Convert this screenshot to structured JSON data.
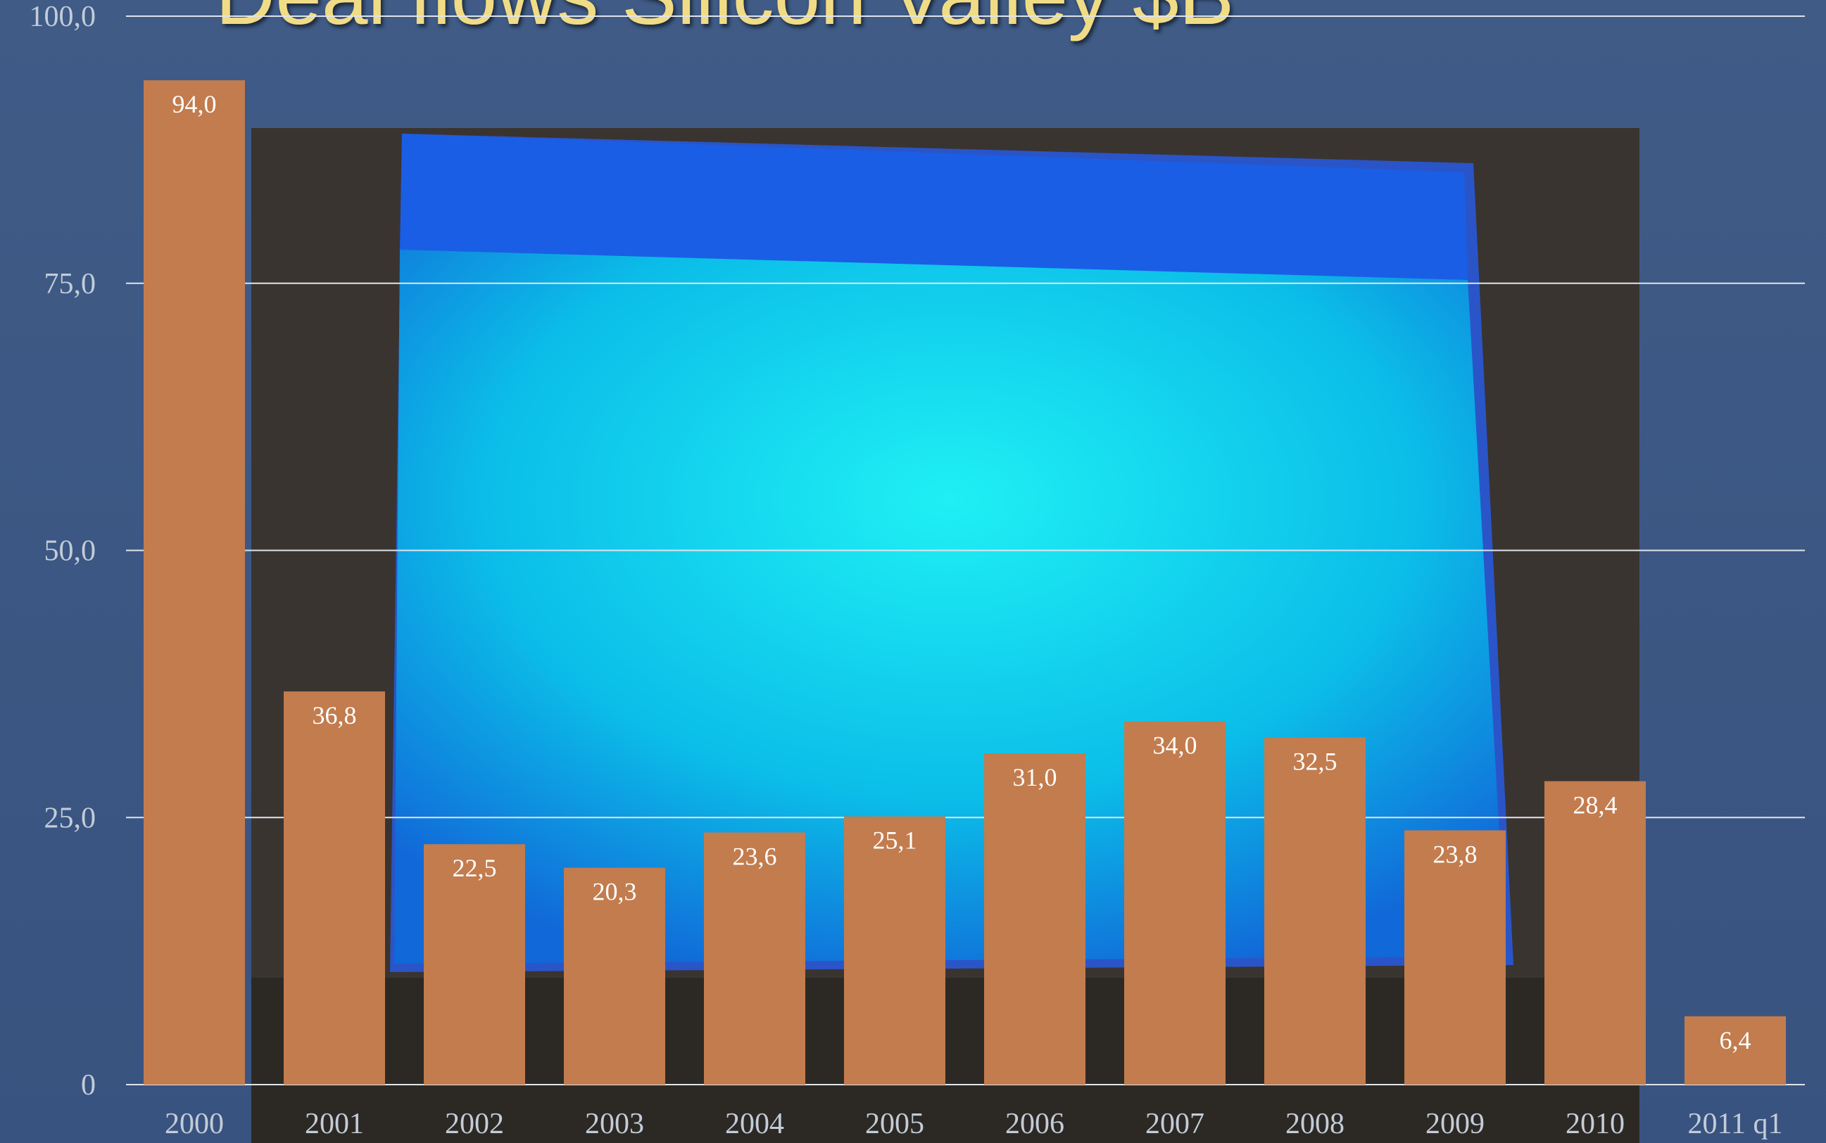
{
  "chart_data": {
    "type": "bar",
    "title": "Deal flows Silicon Valley $B",
    "categories": [
      "2000",
      "2001",
      "2002",
      "2003",
      "2004",
      "2005",
      "2006",
      "2007",
      "2008",
      "2009",
      "2010",
      "2011 q1"
    ],
    "values": [
      94.0,
      36.8,
      22.5,
      20.3,
      23.6,
      25.1,
      31.0,
      34.0,
      32.5,
      23.8,
      28.4,
      6.4
    ],
    "value_labels": [
      "94,0",
      "36,8",
      "22,5",
      "20,3",
      "23,6",
      "25,1",
      "31,0",
      "34,0",
      "32,5",
      "23,8",
      "28,4",
      "6,4"
    ],
    "color": "#c27c4e",
    "ylim": [
      0,
      100
    ],
    "yticks": [
      0,
      {
        "value": 25,
        "label": "25,0"
      },
      {
        "value": 50,
        "label": "50,0"
      },
      {
        "value": 75,
        "label": "75,0"
      },
      {
        "value": 100,
        "label": "100,0"
      }
    ],
    "grid": true
  }
}
